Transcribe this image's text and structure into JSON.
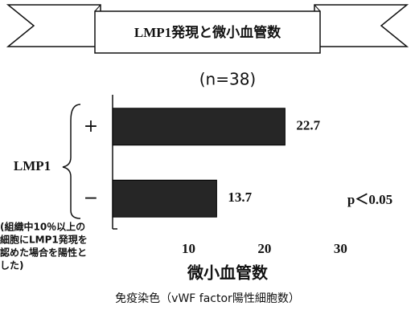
{
  "chart_data": {
    "type": "bar",
    "orientation": "horizontal",
    "title": "LMP1発現と微小血管数",
    "subtitle": "(n=38)",
    "y_label": "LMP1",
    "x_label": "微小血管数",
    "footer": "免疫染色（vWF factor陽性細胞数）",
    "annotation": "p＜0.05",
    "note": [
      "(組織中10％以上の",
      "細胞にLMP1発現を",
      "認めた場合を陽性と",
      "した)"
    ],
    "categories": [
      "+",
      "−"
    ],
    "values": [
      22.7,
      13.7
    ],
    "color": "#262626",
    "xlim": [
      0,
      36
    ],
    "xticks": [
      10,
      20,
      30
    ]
  }
}
